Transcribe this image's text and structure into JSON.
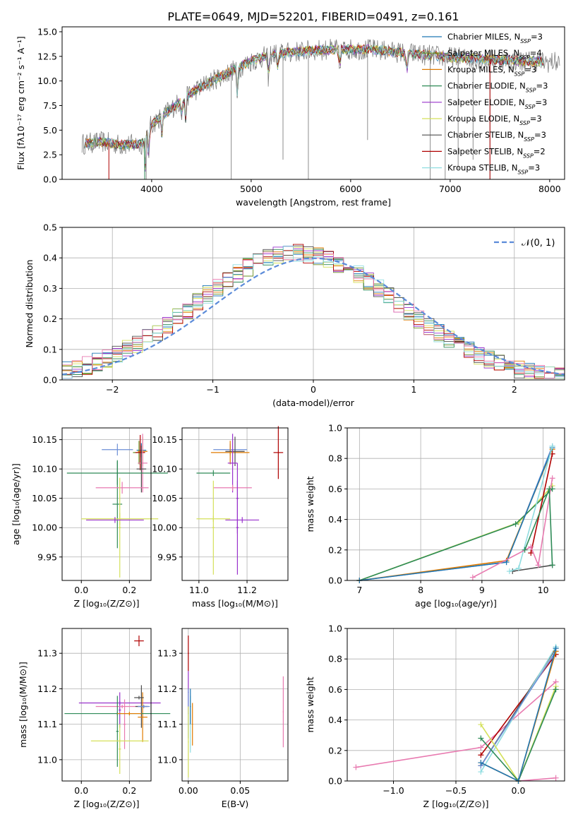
{
  "figure": {
    "title": "PLATE=0649, MJD=52201, FIBERID=0491, z=0.161"
  },
  "colors": {
    "chabrier_miles": "#1f77b4",
    "salpeter_miles": "#6b8e23",
    "kroupa_miles": "#e07b00",
    "chabrier_elodie": "#2e8b57",
    "salpeter_elodie": "#9932cc",
    "kroupa_elodie": "#d4e05a",
    "chabrier_stelib": "#4d4d4d",
    "salpeter_stelib": "#b00000",
    "kroupa_stelib": "#8fdde0",
    "pink": "#e87ab0",
    "blue": "#6d8fd6",
    "normal_curve": "#5b8bd9",
    "data_grey": "#808080"
  },
  "chart_data": [
    {
      "id": "spectrum",
      "type": "line",
      "xlabel": "wavelength [Angstrom, rest frame]",
      "ylabel": "Flux [fλ10⁻¹⁷ erg cm⁻² s⁻¹ A⁻¹]",
      "xlim": [
        3100,
        8150
      ],
      "ylim": [
        0,
        15.5
      ],
      "xticks": [
        "4000",
        "5000",
        "6000",
        "7000",
        "8000"
      ],
      "yticks": [
        "0.0",
        "2.5",
        "5.0",
        "7.5",
        "10.0",
        "12.5",
        "15.0"
      ],
      "legend_position": "top-right",
      "legend": [
        {
          "base": "Chabrier MILES, N",
          "sub": "SSP",
          "tail": "=3"
        },
        {
          "base": "Salpeter MILES, N",
          "sub": "SSP",
          "tail": "=4"
        },
        {
          "base": "Kroupa MILES, N",
          "sub": "SSP",
          "tail": "=3"
        },
        {
          "base": "Chabrier ELODIE, N",
          "sub": "SSP",
          "tail": "=3"
        },
        {
          "base": "Salpeter ELODIE, N",
          "sub": "SSP",
          "tail": "=3"
        },
        {
          "base": "Kroupa ELODIE, N",
          "sub": "SSP",
          "tail": "=3"
        },
        {
          "base": "Chabrier STELIB, N",
          "sub": "SSP",
          "tail": "=3"
        },
        {
          "base": "Salpeter STELIB, N",
          "sub": "SSP",
          "tail": "=2"
        },
        {
          "base": "Kroupa STELIB, N",
          "sub": "SSP",
          "tail": "=3"
        }
      ],
      "envelope": {
        "x": [
          3300,
          3500,
          3700,
          3900,
          4000,
          4200,
          4400,
          4600,
          4800,
          5000,
          5200,
          5400,
          5600,
          5800,
          6000,
          6200,
          6400,
          6600,
          6800,
          7000,
          7200,
          7400,
          7600,
          7800,
          8000,
          8100
        ],
        "y": [
          3.6,
          3.8,
          3.5,
          3.6,
          5.6,
          7.2,
          8.8,
          10.0,
          11.0,
          12.0,
          12.7,
          12.9,
          13.1,
          13.2,
          13.2,
          13.2,
          13.0,
          12.8,
          12.6,
          12.4,
          12.3,
          12.2,
          12.1,
          12.0,
          11.9,
          11.9
        ]
      }
    },
    {
      "id": "residuals",
      "type": "histogram",
      "xlabel": "(data-model)/error",
      "ylabel": "Normed distribution",
      "xlim": [
        -2.5,
        2.5
      ],
      "ylim": [
        0,
        0.5
      ],
      "xticks": [
        "−2",
        "−1",
        "0",
        "1",
        "2"
      ],
      "yticks": [
        "0.0",
        "0.1",
        "0.2",
        "0.3",
        "0.4",
        "0.5"
      ],
      "legend": {
        "label": "𝒩(0, 1)",
        "position": "top-right"
      },
      "bin_width": 0.1
    },
    {
      "id": "age-vs-Z",
      "type": "errorbar",
      "xlabel": "Z [log₁₀(Z/Z⊙)]",
      "ylabel": "age [log₁₀(age/yr)]",
      "xlim": [
        -0.08,
        0.29
      ],
      "ylim": [
        9.91,
        10.17
      ],
      "xticks": [
        "0.0",
        "0.2"
      ],
      "yticks": [
        "9.95",
        "10.00",
        "10.05",
        "10.10",
        "10.15"
      ]
    },
    {
      "id": "age-vs-mass",
      "type": "errorbar",
      "xlabel": "mass [log₁₀(M/M⊙)]",
      "xlim": [
        10.93,
        11.37
      ],
      "ylim": [
        9.91,
        10.17
      ],
      "xticks": [
        "11.0",
        "11.2"
      ],
      "yticks": [
        "9.95",
        "10.00",
        "10.05",
        "10.10",
        "10.15"
      ]
    },
    {
      "id": "weight-vs-age",
      "type": "line",
      "xlabel": "age [log₁₀(age/yr)]",
      "ylabel": "mass weight",
      "xlim": [
        6.8,
        10.35
      ],
      "ylim": [
        0,
        1
      ],
      "xticks": [
        "7",
        "8",
        "9",
        "10"
      ],
      "yticks": [
        "0.0",
        "0.2",
        "0.4",
        "0.6",
        "0.8",
        "1.0"
      ]
    },
    {
      "id": "mass-vs-Z",
      "type": "errorbar",
      "xlabel": "Z [log₁₀(Z/Z⊙)]",
      "ylabel": "mass [log₁₀(M/M⊙)]",
      "xlim": [
        -0.08,
        0.29
      ],
      "ylim": [
        10.94,
        11.37
      ],
      "xticks": [
        "0.0",
        "0.2"
      ],
      "yticks": [
        "11.0",
        "11.1",
        "11.2",
        "11.3"
      ]
    },
    {
      "id": "mass-vs-EBV",
      "type": "errorbar",
      "xlabel": "E(B-V)",
      "xlim": [
        -0.006,
        0.096
      ],
      "ylim": [
        10.94,
        11.37
      ],
      "xticks": [
        "0.00",
        "0.05"
      ],
      "yticks": [
        "11.0",
        "11.1",
        "11.2",
        "11.3"
      ]
    },
    {
      "id": "weight-vs-Z",
      "type": "line",
      "xlabel": "Z [log₁₀(Z/Z⊙)]",
      "ylabel": "mass weight",
      "xlim": [
        -1.37,
        0.37
      ],
      "ylim": [
        0,
        1
      ],
      "xticks": [
        "−1.0",
        "−0.5",
        "0.0"
      ],
      "yticks": [
        "0.0",
        "0.2",
        "0.4",
        "0.6",
        "0.8",
        "1.0"
      ]
    }
  ]
}
